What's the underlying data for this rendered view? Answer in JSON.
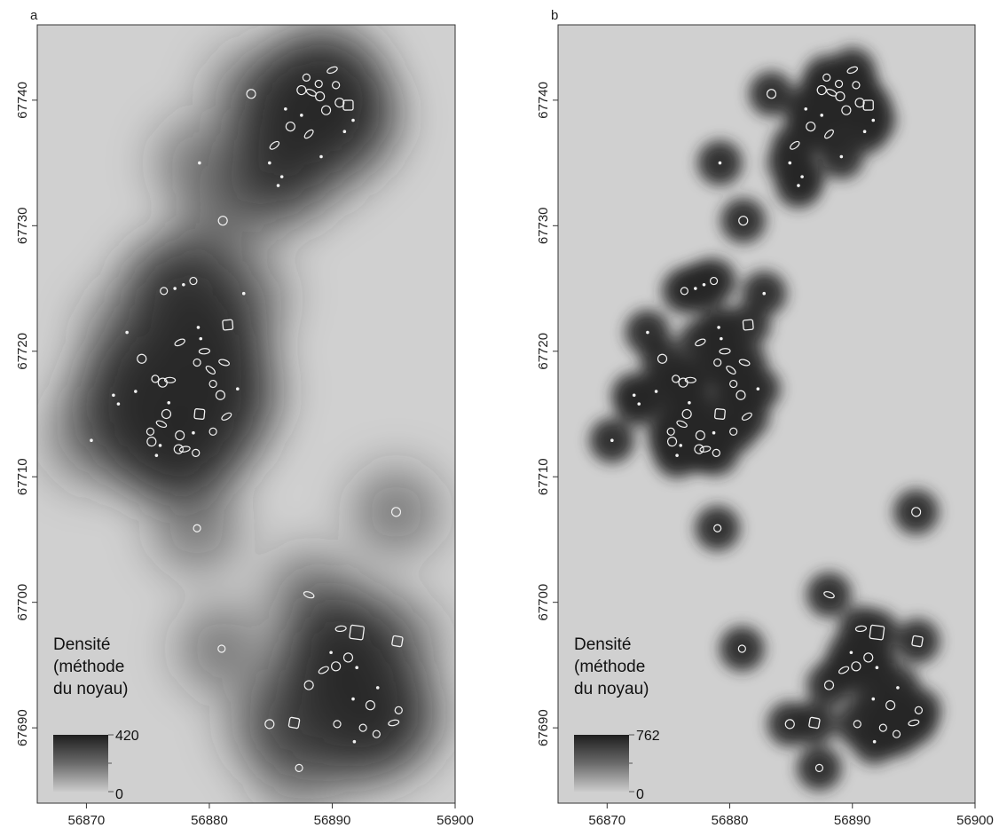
{
  "panels": [
    {
      "id": "a",
      "label": "a",
      "legend": {
        "title_lines": [
          "Densité",
          "(méthode",
          "du noyau)"
        ],
        "max": "420",
        "min": "0"
      },
      "kernel": "broad"
    },
    {
      "id": "b",
      "label": "b",
      "legend": {
        "title_lines": [
          "Densité",
          "(méthode",
          "du noyau)"
        ],
        "max": "762",
        "min": "0"
      },
      "kernel": "narrow"
    }
  ],
  "axes": {
    "x_ticks": [
      "56870",
      "56880",
      "56890",
      "56900"
    ],
    "y_ticks": [
      "67690",
      "67700",
      "67710",
      "67720",
      "67730",
      "67740"
    ],
    "x_range": [
      56866,
      56900
    ],
    "y_range": [
      67684,
      67746
    ]
  },
  "features": [
    {
      "x": 56876.3,
      "y": 67724.8,
      "type": "ring"
    },
    {
      "x": 56877.2,
      "y": 67725.0,
      "type": "dot"
    },
    {
      "x": 56877.9,
      "y": 67725.3,
      "type": "dot"
    },
    {
      "x": 56878.7,
      "y": 67725.6,
      "type": "ring"
    },
    {
      "x": 56873.3,
      "y": 67721.5,
      "type": "dot"
    },
    {
      "x": 56872.2,
      "y": 67716.5,
      "type": "dot"
    },
    {
      "x": 56872.6,
      "y": 67715.8,
      "type": "dot"
    },
    {
      "x": 56874.5,
      "y": 67719.4,
      "type": "ring"
    },
    {
      "x": 56874.0,
      "y": 67716.8,
      "type": "dot"
    },
    {
      "x": 56875.6,
      "y": 67717.8,
      "type": "ring"
    },
    {
      "x": 56876.2,
      "y": 67717.5,
      "type": "ring"
    },
    {
      "x": 56876.8,
      "y": 67717.7,
      "type": "ring"
    },
    {
      "x": 56876.7,
      "y": 67715.9,
      "type": "dot"
    },
    {
      "x": 56876.5,
      "y": 67715.0,
      "type": "ring"
    },
    {
      "x": 56876.1,
      "y": 67714.2,
      "type": "ring"
    },
    {
      "x": 56875.2,
      "y": 67713.6,
      "type": "ring"
    },
    {
      "x": 56875.3,
      "y": 67712.8,
      "type": "ring"
    },
    {
      "x": 56876.0,
      "y": 67712.5,
      "type": "dot"
    },
    {
      "x": 56875.7,
      "y": 67711.7,
      "type": "dot"
    },
    {
      "x": 56877.5,
      "y": 67712.2,
      "type": "ring"
    },
    {
      "x": 56877.6,
      "y": 67720.7,
      "type": "ring"
    },
    {
      "x": 56879.1,
      "y": 67721.9,
      "type": "dot"
    },
    {
      "x": 56879.3,
      "y": 67721.0,
      "type": "dot"
    },
    {
      "x": 56879.6,
      "y": 67720.0,
      "type": "ring"
    },
    {
      "x": 56879.0,
      "y": 67719.1,
      "type": "ring"
    },
    {
      "x": 56881.5,
      "y": 67722.1,
      "type": "square"
    },
    {
      "x": 56881.2,
      "y": 67719.1,
      "type": "ring"
    },
    {
      "x": 56880.3,
      "y": 67717.4,
      "type": "ring"
    },
    {
      "x": 56880.9,
      "y": 67716.5,
      "type": "ring"
    },
    {
      "x": 56880.1,
      "y": 67718.5,
      "type": "ring"
    },
    {
      "x": 56882.3,
      "y": 67717.0,
      "type": "dot"
    },
    {
      "x": 56879.2,
      "y": 67715.0,
      "type": "square"
    },
    {
      "x": 56881.4,
      "y": 67714.8,
      "type": "ring"
    },
    {
      "x": 56880.3,
      "y": 67713.6,
      "type": "ring"
    },
    {
      "x": 56878.7,
      "y": 67713.5,
      "type": "dot"
    },
    {
      "x": 56878.0,
      "y": 67712.2,
      "type": "ring"
    },
    {
      "x": 56878.9,
      "y": 67711.9,
      "type": "ring"
    },
    {
      "x": 56877.6,
      "y": 67713.3,
      "type": "ring"
    },
    {
      "x": 56870.4,
      "y": 67712.9,
      "type": "dot"
    },
    {
      "x": 56879.0,
      "y": 67705.9,
      "type": "ring"
    },
    {
      "x": 56881.1,
      "y": 67730.4,
      "type": "ring"
    },
    {
      "x": 56879.2,
      "y": 67735.0,
      "type": "dot"
    },
    {
      "x": 56882.8,
      "y": 67724.6,
      "type": "dot"
    },
    {
      "x": 56883.4,
      "y": 67740.5,
      "type": "ring"
    },
    {
      "x": 56885.3,
      "y": 67736.4,
      "type": "ring"
    },
    {
      "x": 56884.9,
      "y": 67735.0,
      "type": "dot"
    },
    {
      "x": 56885.9,
      "y": 67733.9,
      "type": "dot"
    },
    {
      "x": 56885.6,
      "y": 67733.2,
      "type": "dot"
    },
    {
      "x": 56886.2,
      "y": 67739.3,
      "type": "dot"
    },
    {
      "x": 56886.6,
      "y": 67737.9,
      "type": "ring"
    },
    {
      "x": 56887.5,
      "y": 67738.8,
      "type": "dot"
    },
    {
      "x": 56887.9,
      "y": 67741.8,
      "type": "ring"
    },
    {
      "x": 56887.5,
      "y": 67740.8,
      "type": "ring"
    },
    {
      "x": 56888.3,
      "y": 67740.6,
      "type": "ring"
    },
    {
      "x": 56888.9,
      "y": 67741.3,
      "type": "ring"
    },
    {
      "x": 56889.0,
      "y": 67740.3,
      "type": "ring"
    },
    {
      "x": 56888.1,
      "y": 67737.3,
      "type": "ring"
    },
    {
      "x": 56889.1,
      "y": 67735.5,
      "type": "dot"
    },
    {
      "x": 56889.5,
      "y": 67739.2,
      "type": "ring"
    },
    {
      "x": 56890.0,
      "y": 67742.4,
      "type": "ring"
    },
    {
      "x": 56890.3,
      "y": 67741.2,
      "type": "ring"
    },
    {
      "x": 56890.6,
      "y": 67739.8,
      "type": "ring"
    },
    {
      "x": 56891.3,
      "y": 67739.6,
      "type": "square"
    },
    {
      "x": 56891.7,
      "y": 67738.4,
      "type": "dot"
    },
    {
      "x": 56891.0,
      "y": 67737.5,
      "type": "dot"
    },
    {
      "x": 56888.1,
      "y": 67700.6,
      "type": "ring"
    },
    {
      "x": 56881.0,
      "y": 67696.3,
      "type": "ring"
    },
    {
      "x": 56884.9,
      "y": 67690.3,
      "type": "ring"
    },
    {
      "x": 56886.9,
      "y": 67690.4,
      "type": "square"
    },
    {
      "x": 56887.3,
      "y": 67686.8,
      "type": "ring"
    },
    {
      "x": 56888.1,
      "y": 67693.4,
      "type": "ring"
    },
    {
      "x": 56889.3,
      "y": 67694.6,
      "type": "ring"
    },
    {
      "x": 56889.9,
      "y": 67696.0,
      "type": "dot"
    },
    {
      "x": 56890.3,
      "y": 67694.9,
      "type": "ring"
    },
    {
      "x": 56890.7,
      "y": 67697.9,
      "type": "ring"
    },
    {
      "x": 56892.0,
      "y": 67697.6,
      "type": "square"
    },
    {
      "x": 56891.3,
      "y": 67695.6,
      "type": "ring"
    },
    {
      "x": 56892.0,
      "y": 67694.8,
      "type": "dot"
    },
    {
      "x": 56890.4,
      "y": 67690.3,
      "type": "ring"
    },
    {
      "x": 56891.8,
      "y": 67688.9,
      "type": "dot"
    },
    {
      "x": 56891.7,
      "y": 67692.3,
      "type": "dot"
    },
    {
      "x": 56892.5,
      "y": 67690.0,
      "type": "ring"
    },
    {
      "x": 56893.1,
      "y": 67691.8,
      "type": "ring"
    },
    {
      "x": 56893.7,
      "y": 67693.2,
      "type": "dot"
    },
    {
      "x": 56893.6,
      "y": 67689.5,
      "type": "ring"
    },
    {
      "x": 56895.3,
      "y": 67696.9,
      "type": "square"
    },
    {
      "x": 56895.0,
      "y": 67690.4,
      "type": "ring"
    },
    {
      "x": 56895.4,
      "y": 67691.4,
      "type": "ring"
    },
    {
      "x": 56895.2,
      "y": 67707.2,
      "type": "ring"
    }
  ]
}
